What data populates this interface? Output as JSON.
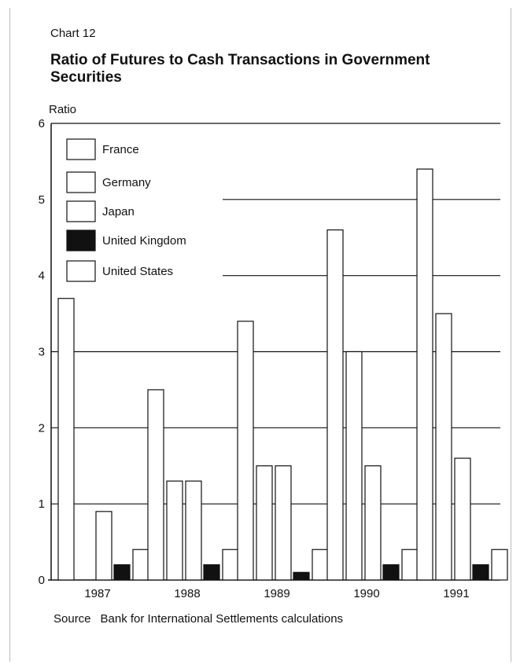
{
  "chart_number": "Chart 12",
  "source": {
    "label": "Source",
    "text": "Bank for International Settlements calculations"
  },
  "colors": {
    "open_bar_fill": "#ffffff",
    "uk_bar_fill": "#111111",
    "line": "#111111"
  },
  "chart_data": {
    "type": "bar",
    "title": "Ratio of Futures to Cash Transactions in Government Securities",
    "ylabel": "Ratio",
    "xlabel": "",
    "ylim": [
      0,
      6
    ],
    "yticks": [
      0,
      1,
      2,
      3,
      4,
      5,
      6
    ],
    "grid": true,
    "legend_position": "top-left",
    "categories": [
      "1987",
      "1988",
      "1989",
      "1990",
      "1991"
    ],
    "series": [
      {
        "name": "France",
        "fill": "white",
        "values": [
          3.7,
          2.5,
          3.4,
          4.6,
          5.4
        ]
      },
      {
        "name": "Germany",
        "fill": "white",
        "values": [
          0,
          1.3,
          1.5,
          3.0,
          3.5
        ]
      },
      {
        "name": "Japan",
        "fill": "white",
        "values": [
          0.9,
          1.3,
          1.5,
          1.5,
          1.6
        ]
      },
      {
        "name": "United Kingdom",
        "fill": "black",
        "values": [
          0.2,
          0.2,
          0.1,
          0.2,
          0.2
        ]
      },
      {
        "name": "United States",
        "fill": "white",
        "values": [
          0.4,
          0.4,
          0.4,
          0.4,
          0.4
        ]
      }
    ]
  }
}
